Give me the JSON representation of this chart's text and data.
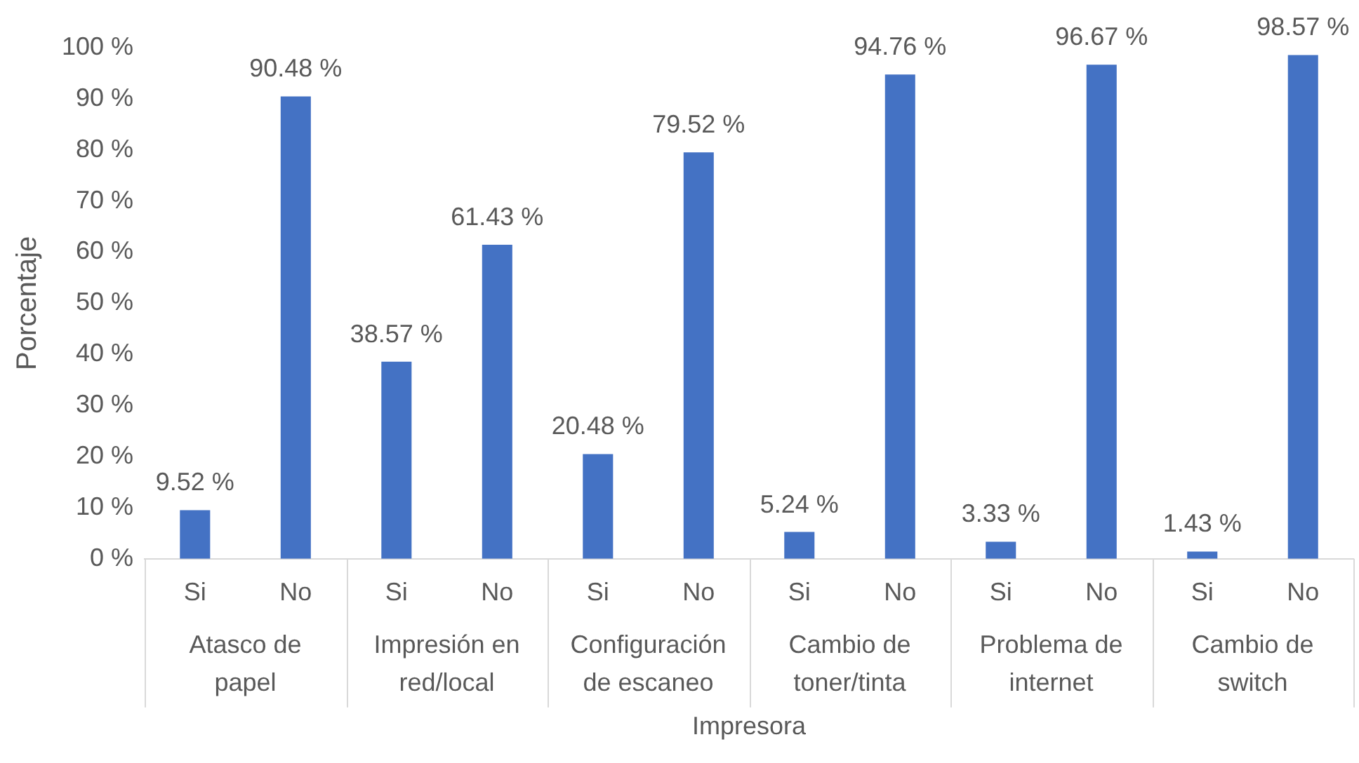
{
  "chart_data": {
    "type": "bar",
    "xlabel": "Impresora",
    "ylabel": "Porcentaje",
    "categories": [
      "Si",
      "No",
      "Si",
      "No",
      "Si",
      "No",
      "Si",
      "No",
      "Si",
      "No",
      "Si",
      "No"
    ],
    "series": [
      {
        "color": "#4472c4",
        "values": [
          9.52,
          90.48,
          38.57,
          61.43,
          20.48,
          79.52,
          5.24,
          94.76,
          3.33,
          96.67,
          1.43,
          98.57
        ],
        "value_labels": [
          "9.52 %",
          "90.48 %",
          "38.57 %",
          "61.43 %",
          "20.48 %",
          "79.52 %",
          "5.24 %",
          "94.76 %",
          "3.33 %",
          "96.67 %",
          "1.43 %",
          "98.57 %"
        ]
      }
    ],
    "annotations": [
      "Atasco de papel",
      "Impresión en red/local",
      "Configuración de escaneo",
      "Cambio de toner/tinta",
      "Problema de internet",
      "Cambio de switch"
    ],
    "ylim": [
      0,
      100
    ],
    "yticks": [
      {
        "value": 0,
        "label": "0 %"
      },
      {
        "value": 10,
        "label": "10 %"
      },
      {
        "value": 20,
        "label": "20 %"
      },
      {
        "value": 30,
        "label": "30 %"
      },
      {
        "value": 40,
        "label": "40 %"
      },
      {
        "value": 50,
        "label": "50 %"
      },
      {
        "value": 60,
        "label": "60 %"
      },
      {
        "value": 70,
        "label": "70 %"
      },
      {
        "value": 80,
        "label": "80 %"
      },
      {
        "value": 90,
        "label": "90 %"
      },
      {
        "value": 100,
        "label": "100 %"
      }
    ],
    "grid": false,
    "legend": false
  }
}
